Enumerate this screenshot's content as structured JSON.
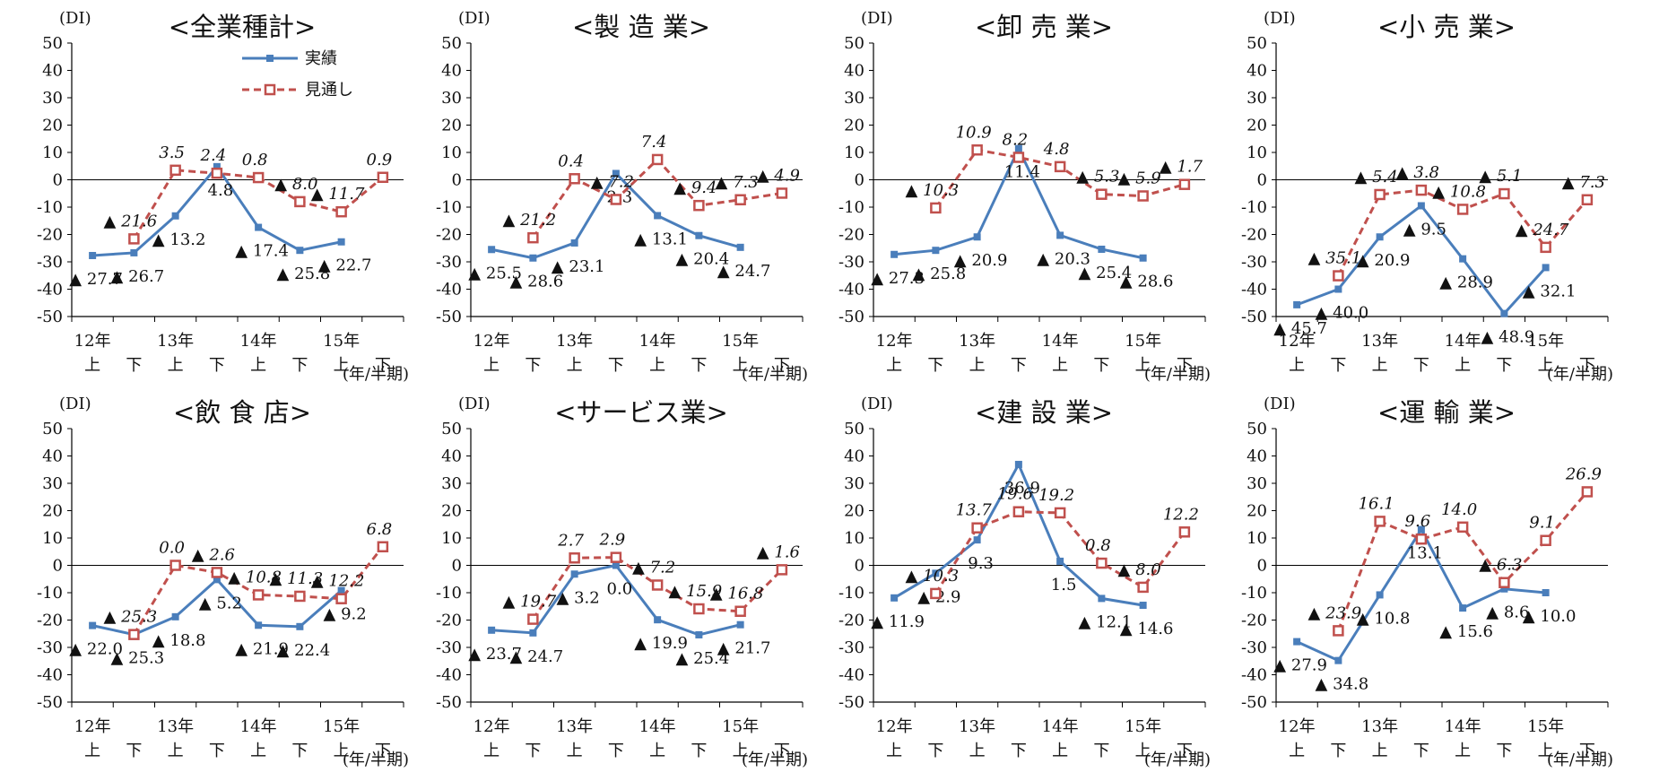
{
  "legend": {
    "actual": "実績",
    "forecast": "見通し"
  },
  "common": {
    "y_unit": "(DI)",
    "x_unit": "(年/半期)",
    "year_labels": [
      "12年",
      "13年",
      "14年",
      "15年"
    ],
    "half_labels": [
      "上",
      "下",
      "上",
      "下",
      "上",
      "下",
      "上",
      "下"
    ],
    "negative_marker": "▲"
  },
  "colors": {
    "actual": "#4a7ebb",
    "forecast": "#c0504d",
    "axis": "#000000"
  },
  "chart_data": [
    {
      "type": "line",
      "title": "<全業種計>",
      "categories": [
        "12年上",
        "12年下",
        "13年上",
        "13年下",
        "14年上",
        "14年下",
        "15年上",
        "15年下"
      ],
      "ylim": [
        -50,
        50
      ],
      "ytick_step": 10,
      "series": [
        {
          "name": "実績",
          "values": [
            -27.7,
            -26.7,
            -13.2,
            4.8,
            -17.4,
            -25.8,
            -22.7,
            null
          ],
          "labels": [
            "▲ 27.7",
            "▲ 26.7",
            "▲ 13.2",
            "4.8",
            "▲ 17.4",
            "▲ 25.8",
            "▲ 22.7",
            ""
          ]
        },
        {
          "name": "見通し",
          "values": [
            null,
            -21.6,
            3.5,
            2.4,
            0.8,
            -8.0,
            -11.7,
            0.9
          ],
          "labels": [
            "",
            "▲ 21.6",
            "3.5",
            "2.4",
            "0.8",
            "▲ 8.0",
            "▲ 11.7",
            "0.9"
          ]
        }
      ]
    },
    {
      "type": "line",
      "title": "<製 造 業>",
      "categories": [
        "12年上",
        "12年下",
        "13年上",
        "13年下",
        "14年上",
        "14年下",
        "15年上",
        "15年下"
      ],
      "ylim": [
        -50,
        50
      ],
      "ytick_step": 10,
      "series": [
        {
          "name": "実績",
          "values": [
            -25.5,
            -28.6,
            -23.1,
            2.3,
            -13.1,
            -20.4,
            -24.7,
            null
          ],
          "labels": [
            "▲ 25.5",
            "▲ 28.6",
            "▲ 23.1",
            "2.3",
            "▲ 13.1",
            "▲ 20.4",
            "▲ 24.7",
            ""
          ]
        },
        {
          "name": "見通し",
          "values": [
            null,
            -21.2,
            0.4,
            -7.2,
            7.4,
            -9.4,
            -7.3,
            -4.9
          ],
          "labels": [
            "",
            "▲ 21.2",
            "0.4",
            "▲ 7.2",
            "7.4",
            "▲ 9.4",
            "▲ 7.3",
            "▲ 4.9"
          ]
        }
      ]
    },
    {
      "type": "line",
      "title": "<卸 売 業>",
      "categories": [
        "12年上",
        "12年下",
        "13年上",
        "13年下",
        "14年上",
        "14年下",
        "15年上",
        "15年下"
      ],
      "ylim": [
        -50,
        50
      ],
      "ytick_step": 10,
      "series": [
        {
          "name": "実績",
          "values": [
            -27.3,
            -25.8,
            -20.9,
            11.4,
            -20.3,
            -25.4,
            -28.6,
            null
          ],
          "labels": [
            "▲ 27.3",
            "▲ 25.8",
            "▲ 20.9",
            "11.4",
            "▲ 20.3",
            "▲ 25.4",
            "▲ 28.6",
            ""
          ]
        },
        {
          "name": "見通し",
          "values": [
            null,
            -10.3,
            10.9,
            8.2,
            4.8,
            -5.3,
            -5.9,
            -1.7
          ],
          "labels": [
            "",
            "▲ 10.3",
            "10.9",
            "8.2",
            "4.8",
            "▲ 5.3",
            "▲ 5.9",
            "▲ 1.7"
          ]
        }
      ]
    },
    {
      "type": "line",
      "title": "<小 売 業>",
      "categories": [
        "12年上",
        "12年下",
        "13年上",
        "13年下",
        "14年上",
        "14年下",
        "15年上",
        "15年下"
      ],
      "ylim": [
        -50,
        50
      ],
      "ytick_step": 10,
      "series": [
        {
          "name": "実績",
          "values": [
            -45.7,
            -40.0,
            -20.9,
            -9.5,
            -28.9,
            -48.9,
            -32.1,
            null
          ],
          "labels": [
            "▲ 45.7",
            "▲ 40.0",
            "▲ 20.9",
            "▲ 9.5",
            "▲ 28.9",
            "▲ 48.9",
            "▲ 32.1",
            ""
          ]
        },
        {
          "name": "見通し",
          "values": [
            null,
            -35.1,
            -5.4,
            -3.8,
            -10.8,
            -5.1,
            -24.7,
            -7.3
          ],
          "labels": [
            "",
            "▲ 35.1",
            "▲ 5.4",
            "▲ 3.8",
            "▲ 10.8",
            "▲ 5.1",
            "▲ 24.7",
            "▲ 7.3"
          ]
        }
      ]
    },
    {
      "type": "line",
      "title": "<飲 食 店>",
      "categories": [
        "12年上",
        "12年下",
        "13年上",
        "13年下",
        "14年上",
        "14年下",
        "15年上",
        "15年下"
      ],
      "ylim": [
        -50,
        50
      ],
      "ytick_step": 10,
      "series": [
        {
          "name": "実績",
          "values": [
            -22.0,
            -25.3,
            -18.8,
            -5.2,
            -21.9,
            -22.4,
            -9.2,
            null
          ],
          "labels": [
            "▲ 22.0",
            "▲ 25.3",
            "▲ 18.8",
            "▲ 5.2",
            "▲ 21.9",
            "▲ 22.4",
            "▲ 9.2",
            ""
          ]
        },
        {
          "name": "見通し",
          "values": [
            null,
            -25.3,
            0.0,
            -2.6,
            -10.8,
            -11.3,
            -12.2,
            6.8
          ],
          "labels": [
            "",
            "▲ 25.3",
            "0.0",
            "▲ 2.6",
            "▲ 10.8",
            "▲ 11.3",
            "▲ 12.2",
            "6.8"
          ]
        }
      ]
    },
    {
      "type": "line",
      "title": "<サービス業>",
      "categories": [
        "12年上",
        "12年下",
        "13年上",
        "13年下",
        "14年上",
        "14年下",
        "15年上",
        "15年下"
      ],
      "ylim": [
        -50,
        50
      ],
      "ytick_step": 10,
      "series": [
        {
          "name": "実績",
          "values": [
            -23.7,
            -24.7,
            -3.2,
            0.0,
            -19.9,
            -25.4,
            -21.7,
            null
          ],
          "labels": [
            "▲ 23.7",
            "▲ 24.7",
            "▲ 3.2",
            "0.0",
            "▲ 19.9",
            "▲ 25.4",
            "▲ 21.7",
            ""
          ]
        },
        {
          "name": "見通し",
          "values": [
            null,
            -19.7,
            2.7,
            2.9,
            -7.2,
            -15.9,
            -16.8,
            -1.6
          ],
          "labels": [
            "",
            "▲ 19.7",
            "2.7",
            "2.9",
            "▲ 7.2",
            "▲ 15.9",
            "▲ 16.8",
            "▲ 1.6"
          ]
        }
      ]
    },
    {
      "type": "line",
      "title": "<建 設 業>",
      "categories": [
        "12年上",
        "12年下",
        "13年上",
        "13年下",
        "14年上",
        "14年下",
        "15年上",
        "15年下"
      ],
      "ylim": [
        -50,
        50
      ],
      "ytick_step": 10,
      "series": [
        {
          "name": "実績",
          "values": [
            -11.9,
            -2.9,
            9.3,
            36.9,
            1.5,
            -12.1,
            -14.6,
            null
          ],
          "labels": [
            "▲ 11.9",
            "▲ 2.9",
            "9.3",
            "36.9",
            "1.5",
            "▲ 12.1",
            "▲ 14.6",
            ""
          ]
        },
        {
          "name": "見通し",
          "values": [
            null,
            -10.3,
            13.7,
            19.6,
            19.2,
            0.8,
            -8.0,
            12.2
          ],
          "labels": [
            "",
            "▲ 10.3",
            "13.7",
            "19.6",
            "19.2",
            "0.8",
            "▲ 8.0",
            "12.2"
          ]
        }
      ]
    },
    {
      "type": "line",
      "title": "<運 輸 業>",
      "categories": [
        "12年上",
        "12年下",
        "13年上",
        "13年下",
        "14年上",
        "14年下",
        "15年上",
        "15年下"
      ],
      "ylim": [
        -50,
        50
      ],
      "ytick_step": 10,
      "series": [
        {
          "name": "実績",
          "values": [
            -27.9,
            -34.8,
            -10.8,
            13.1,
            -15.6,
            -8.6,
            -10.0,
            null
          ],
          "labels": [
            "▲ 27.9",
            "▲ 34.8",
            "▲ 10.8",
            "13.1",
            "▲ 15.6",
            "▲ 8.6",
            "▲ 10.0",
            ""
          ]
        },
        {
          "name": "見通し",
          "values": [
            null,
            -23.9,
            16.1,
            9.6,
            14.0,
            -6.3,
            9.1,
            26.9
          ],
          "labels": [
            "",
            "▲ 23.9",
            "16.1",
            "9.6",
            "14.0",
            "▲ 6.3",
            "9.1",
            "26.9"
          ]
        }
      ]
    }
  ]
}
